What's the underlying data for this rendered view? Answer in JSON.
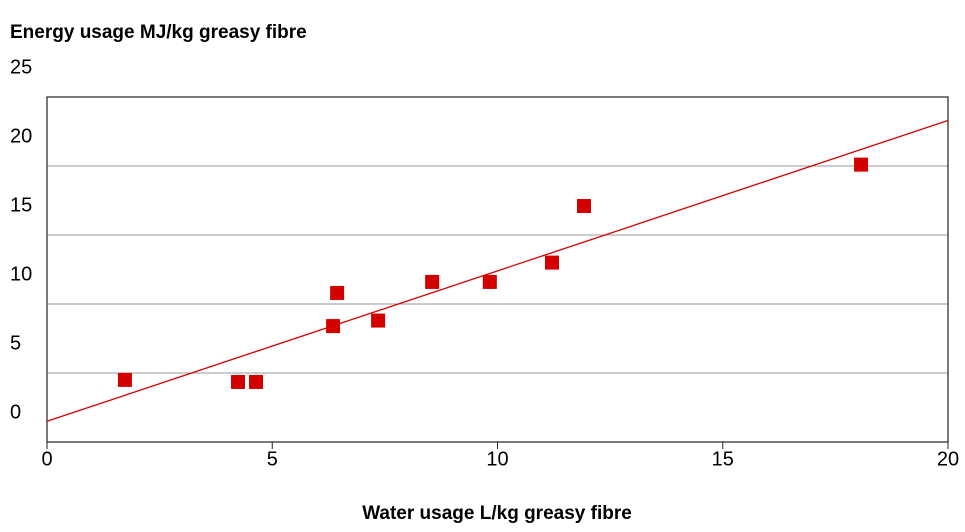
{
  "chart_data": {
    "type": "scatter",
    "title": "Energy usage MJ/kg greasy fibre",
    "x_label": "Water usage L/kg greasy fibre",
    "series": [
      {
        "color": "#d40000",
        "x": [
          1.73,
          4.24,
          4.64,
          6.35,
          6.44,
          7.35,
          8.55,
          9.83,
          11.21,
          11.92,
          18.07
        ],
        "values": [
          4.5,
          4.35,
          4.35,
          8.4,
          10.8,
          8.8,
          11.6,
          11.6,
          13.0,
          17.1,
          20.1
        ]
      }
    ],
    "trendline": {
      "x": [
        0,
        20
      ],
      "values": [
        1.5,
        23.3
      ],
      "color": "#d40000"
    },
    "xlim": [
      0,
      20
    ],
    "xticks": [
      0,
      5,
      10,
      15,
      20
    ],
    "ylim": [
      0,
      25
    ],
    "yticks": [
      0,
      5,
      10,
      15,
      20,
      25
    ],
    "grid": true
  }
}
